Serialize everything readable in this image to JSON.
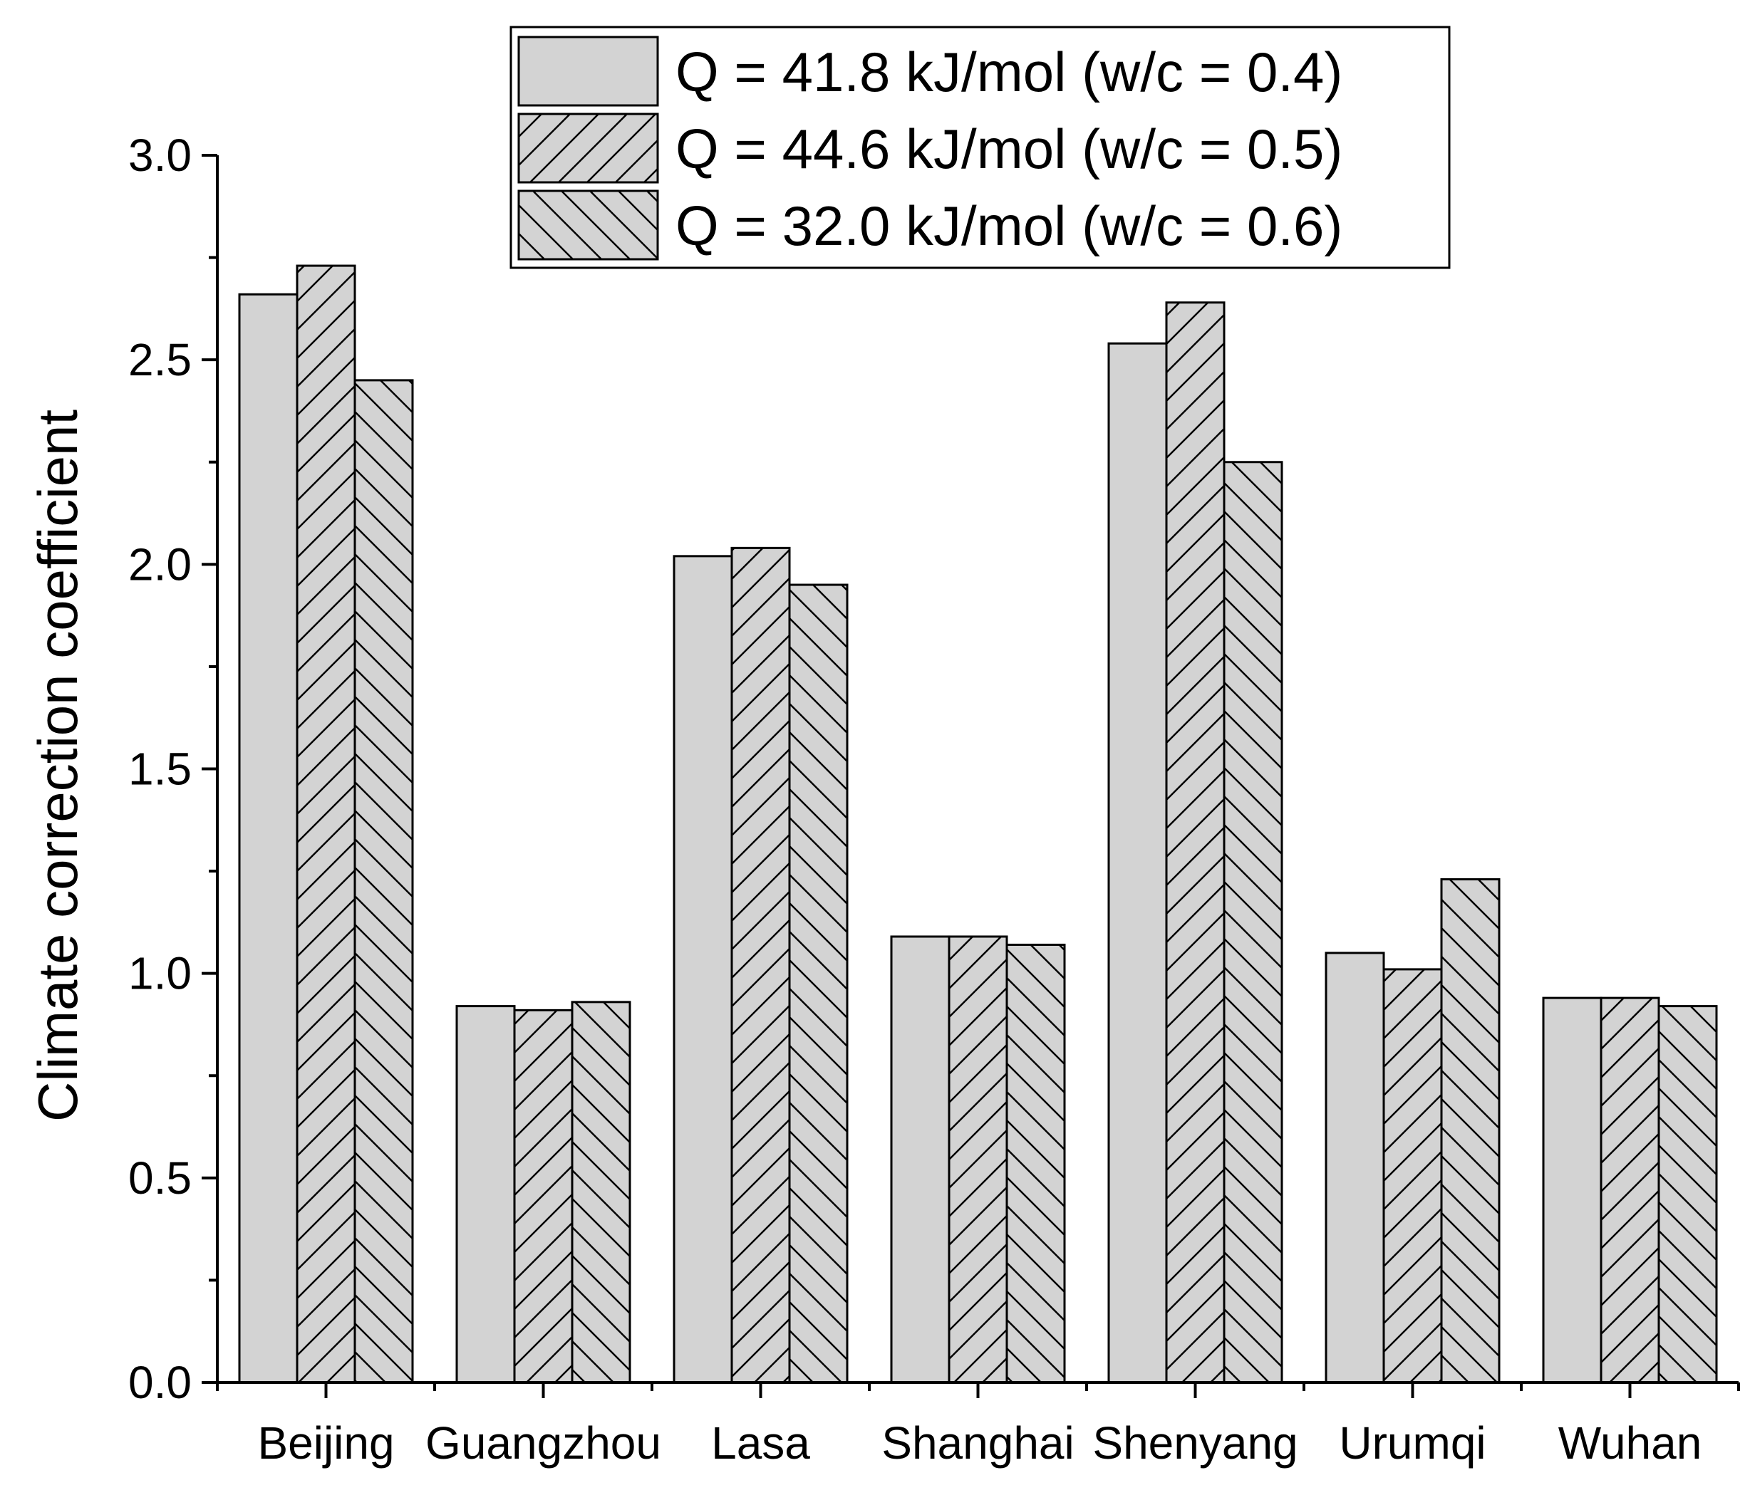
{
  "chart_data": {
    "type": "bar",
    "title": "",
    "xlabel": "",
    "ylabel": "Climate correction coefficient",
    "ylim": [
      0,
      3.0
    ],
    "yticks": [
      "0.0",
      "0.5",
      "1.0",
      "1.5",
      "2.0",
      "2.5",
      "3.0"
    ],
    "categories": [
      "Beijing",
      "Guangzhou",
      "Lasa",
      "Shanghai",
      "Shenyang",
      "Urumqi",
      "Wuhan"
    ],
    "series": [
      {
        "name": "Q = 41.8 kJ/mol (w/c = 0.4)",
        "pattern": "solid",
        "values": [
          2.66,
          0.92,
          2.02,
          1.09,
          2.54,
          1.05,
          0.94
        ]
      },
      {
        "name": "Q = 44.6 kJ/mol (w/c = 0.5)",
        "pattern": "forward-hatch",
        "values": [
          2.73,
          0.91,
          2.04,
          1.09,
          2.64,
          1.01,
          0.94
        ]
      },
      {
        "name": "Q = 32.0 kJ/mol (w/c = 0.6)",
        "pattern": "back-hatch",
        "values": [
          2.45,
          0.93,
          1.95,
          1.07,
          2.25,
          1.23,
          0.92
        ]
      }
    ],
    "legend_position": "top-center",
    "grid": false,
    "colors": {
      "bar_fill": "#d3d3d3",
      "stroke": "#000000",
      "background": "#ffffff"
    }
  }
}
